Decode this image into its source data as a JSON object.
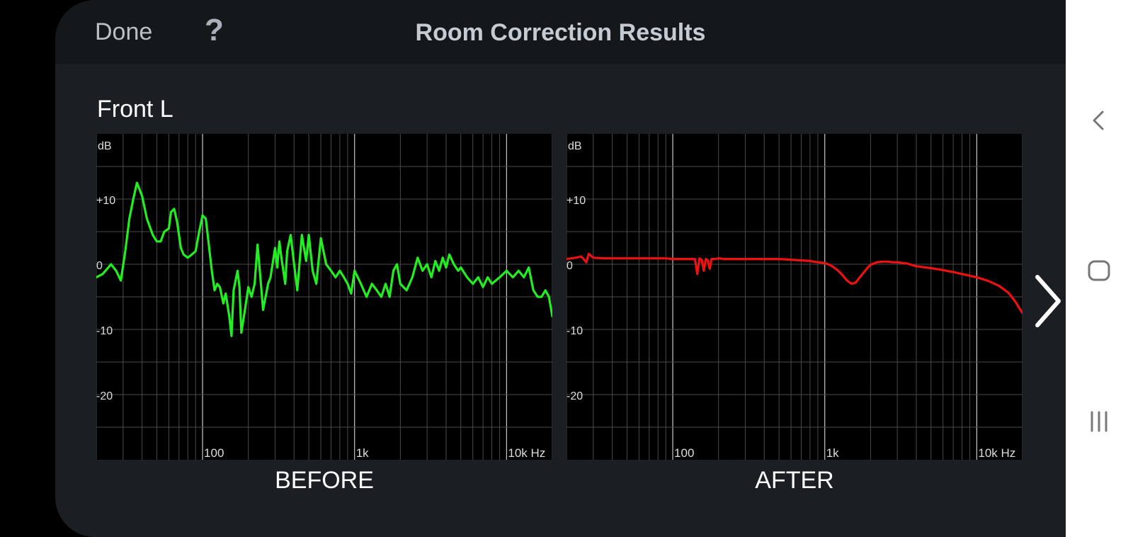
{
  "header": {
    "done_label": "Done",
    "help_label": "?",
    "title": "Room Correction Results"
  },
  "channel": {
    "name": "Front L"
  },
  "icons": {
    "next": "chevron-right-icon",
    "back": "back-icon",
    "home": "home-icon",
    "recents": "recents-icon"
  },
  "chart_data": [
    {
      "type": "line",
      "caption": "BEFORE",
      "xscale": "log",
      "xlim": [
        20,
        20000
      ],
      "ylim": [
        -30,
        20
      ],
      "unit_label": "dB",
      "ytick_labels": [
        "+10",
        "0",
        "-10",
        "-20"
      ],
      "yticks": [
        10,
        0,
        -10,
        -20
      ],
      "xtick_labels": [
        "100",
        "1k",
        "10k Hz"
      ],
      "xticks": [
        100,
        1000,
        10000
      ],
      "grid": true,
      "color": "#22ee22",
      "series": [
        {
          "x": [
            20,
            22,
            24,
            25,
            27,
            29,
            31,
            33,
            35,
            37,
            40,
            43,
            47,
            50,
            53,
            56,
            60,
            62,
            65,
            68,
            72,
            75,
            80,
            85,
            90,
            95,
            100,
            105,
            110,
            115,
            120,
            125,
            130,
            137,
            142,
            150,
            155,
            160,
            170,
            175,
            180,
            190,
            200,
            210,
            220,
            230,
            240,
            250,
            270,
            280,
            300,
            310,
            320,
            330,
            350,
            360,
            380,
            400,
            420,
            450,
            480,
            500,
            530,
            560,
            600,
            650,
            700,
            750,
            800,
            850,
            900,
            950,
            1000,
            1100,
            1200,
            1300,
            1400,
            1500,
            1600,
            1700,
            1800,
            1900,
            2000,
            2200,
            2400,
            2600,
            2800,
            3000,
            3200,
            3400,
            3600,
            3800,
            4000,
            4200,
            4500,
            4800,
            5000,
            5500,
            6000,
            6500,
            7000,
            7500,
            8000,
            9000,
            10000,
            11000,
            12000,
            13000,
            14000,
            15000,
            16000,
            17000,
            18000,
            19000,
            20000
          ],
          "y": [
            -2,
            -1.5,
            -0.5,
            0,
            -1,
            -2.5,
            2,
            7,
            10,
            12.5,
            10.5,
            7,
            4.5,
            3.5,
            3.5,
            5,
            5.5,
            8,
            8.5,
            6.5,
            2.5,
            1.5,
            1,
            1.5,
            2,
            5,
            7.5,
            7,
            3,
            -1,
            -4,
            -3,
            -3.5,
            -6,
            -4.5,
            -8,
            -11,
            -4,
            -1,
            -3.5,
            -10.5,
            -7,
            -3.5,
            -5,
            -3,
            3,
            -2,
            -7,
            -3,
            -2,
            2.5,
            -0.5,
            3.5,
            1,
            -3,
            2,
            4.5,
            0,
            -4,
            4.5,
            0.5,
            4.5,
            -1,
            -3,
            4,
            0,
            -1,
            -2,
            -1,
            -2,
            -3,
            -4.5,
            -1,
            -3,
            -5,
            -3,
            -4,
            -5,
            -3,
            -5,
            -1,
            0,
            -3,
            -4,
            -2,
            1,
            -1,
            0,
            -2,
            0.5,
            -1,
            1,
            -0.5,
            1.5,
            0,
            -1,
            -0.5,
            -2,
            -3,
            -2,
            -3.5,
            -2,
            -3,
            -2,
            -1,
            -2,
            -1,
            -2,
            -0.5,
            -4,
            -5,
            -5,
            -4,
            -5,
            -8
          ]
        }
      ]
    },
    {
      "type": "line",
      "caption": "AFTER",
      "xscale": "log",
      "xlim": [
        20,
        20000
      ],
      "ylim": [
        -30,
        20
      ],
      "unit_label": "dB",
      "ytick_labels": [
        "+10",
        "0",
        "-10",
        "-20"
      ],
      "yticks": [
        10,
        0,
        -10,
        -20
      ],
      "xtick_labels": [
        "100",
        "1k",
        "10k Hz"
      ],
      "xticks": [
        100,
        1000,
        10000
      ],
      "grid": true,
      "color": "#ee1111",
      "series": [
        {
          "x": [
            20,
            23,
            25,
            27,
            28,
            30,
            35,
            40,
            50,
            60,
            70,
            80,
            90,
            100,
            120,
            140,
            145,
            150,
            155,
            160,
            165,
            170,
            175,
            180,
            190,
            200,
            220,
            250,
            300,
            400,
            500,
            600,
            700,
            800,
            900,
            1000,
            1100,
            1200,
            1300,
            1400,
            1500,
            1600,
            1700,
            1800,
            1900,
            2000,
            2200,
            2400,
            2600,
            2800,
            3000,
            3500,
            4000,
            5000,
            6000,
            7000,
            8000,
            10000,
            12000,
            14000,
            16000,
            17000,
            18000,
            19000,
            20000
          ],
          "y": [
            0.8,
            1,
            1.2,
            0.3,
            1.6,
            1,
            0.9,
            0.9,
            0.9,
            0.9,
            0.9,
            0.9,
            0.9,
            0.8,
            0.8,
            0.8,
            -1.5,
            0.9,
            0.7,
            -1,
            0.8,
            0.6,
            -0.7,
            0.8,
            0.8,
            0.9,
            0.8,
            0.8,
            0.8,
            0.8,
            0.8,
            0.7,
            0.6,
            0.5,
            0.3,
            0.2,
            -0.2,
            -0.8,
            -1.6,
            -2.5,
            -3,
            -2.8,
            -2,
            -1.3,
            -0.6,
            -0.1,
            0.3,
            0.4,
            0.4,
            0.3,
            0.3,
            0.1,
            -0.3,
            -0.6,
            -0.9,
            -1.2,
            -1.5,
            -2,
            -2.6,
            -3.3,
            -4.3,
            -5,
            -5.8,
            -6.7,
            -7.5
          ]
        }
      ]
    }
  ]
}
